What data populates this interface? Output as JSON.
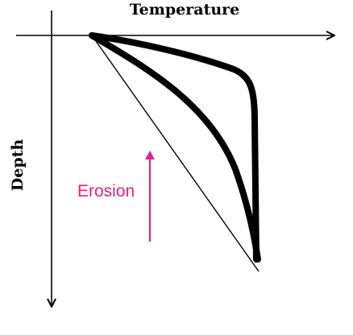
{
  "diagram": {
    "x_axis_label": "Temperature",
    "y_axis_label": "Depth",
    "annotation_label": "Erosion",
    "colors": {
      "axes": "#000000",
      "curves": "#000000",
      "annotation": "#e8208c"
    }
  }
}
